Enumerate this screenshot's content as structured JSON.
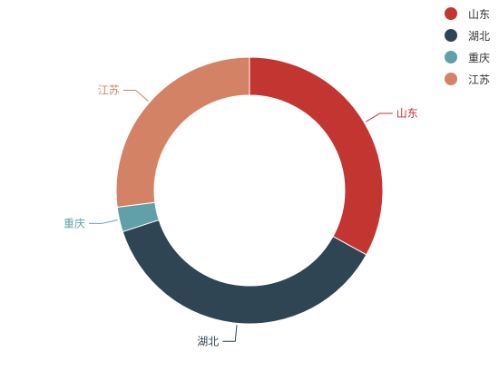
{
  "chart_data": {
    "type": "pie",
    "categories": [
      "山东",
      "湖北",
      "重庆",
      "江苏"
    ],
    "values": [
      33,
      37,
      3,
      27
    ],
    "colors": [
      "#c23531",
      "#2f4554",
      "#61a0a8",
      "#d48265"
    ],
    "legend_position": "top-right"
  }
}
